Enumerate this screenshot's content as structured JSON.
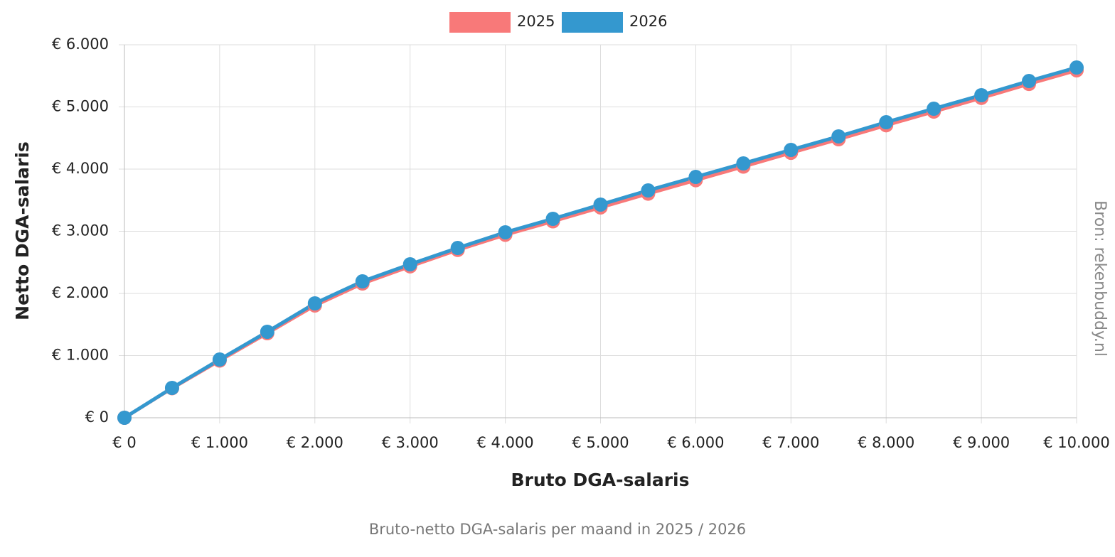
{
  "chart_data": {
    "type": "line",
    "title": "Bruto-netto DGA-salaris per maand in 2025 / 2026",
    "x_label": "Bruto DGA-salaris",
    "y_label": "Netto DGA-salaris",
    "source": "Bron: rekenbuddy.nl",
    "x": [
      0,
      500,
      1000,
      1500,
      2000,
      2500,
      3000,
      3500,
      4000,
      4500,
      5000,
      5500,
      6000,
      6500,
      7000,
      7500,
      8000,
      8500,
      9000,
      9500,
      10000
    ],
    "series": [
      {
        "name": "2025",
        "color": "#f87979",
        "values": [
          0,
          475,
          920,
          1360,
          1806,
          2160,
          2435,
          2700,
          2943,
          3160,
          3383,
          3605,
          3822,
          4040,
          4262,
          4480,
          4705,
          4925,
          5145,
          5370,
          5589
        ]
      },
      {
        "name": "2026",
        "color": "#3498cf",
        "values": [
          0,
          480,
          937,
          1383,
          1840,
          2194,
          2469,
          2731,
          2983,
          3200,
          3429,
          3657,
          3874,
          4091,
          4309,
          4526,
          4754,
          4971,
          5189,
          5417,
          5634
        ]
      }
    ],
    "xlim": [
      0,
      10000
    ],
    "ylim": [
      0,
      6000
    ],
    "xticks": [
      {
        "value": 0,
        "label": "€ 0"
      },
      {
        "value": 1000,
        "label": "€ 1.000"
      },
      {
        "value": 2000,
        "label": "€ 2.000"
      },
      {
        "value": 3000,
        "label": "€ 3.000"
      },
      {
        "value": 4000,
        "label": "€ 4.000"
      },
      {
        "value": 5000,
        "label": "€ 5.000"
      },
      {
        "value": 6000,
        "label": "€ 6.000"
      },
      {
        "value": 7000,
        "label": "€ 7.000"
      },
      {
        "value": 8000,
        "label": "€ 8.000"
      },
      {
        "value": 9000,
        "label": "€ 9.000"
      },
      {
        "value": 10000,
        "label": "€ 10.000"
      }
    ],
    "yticks": [
      {
        "value": 0,
        "label": "€ 0"
      },
      {
        "value": 1000,
        "label": "€ 1.000"
      },
      {
        "value": 2000,
        "label": "€ 2.000"
      },
      {
        "value": 3000,
        "label": "€ 3.000"
      },
      {
        "value": 4000,
        "label": "€ 4.000"
      },
      {
        "value": 5000,
        "label": "€ 5.000"
      },
      {
        "value": 6000,
        "label": "€ 6.000"
      }
    ],
    "grid": true,
    "legend": "top"
  }
}
